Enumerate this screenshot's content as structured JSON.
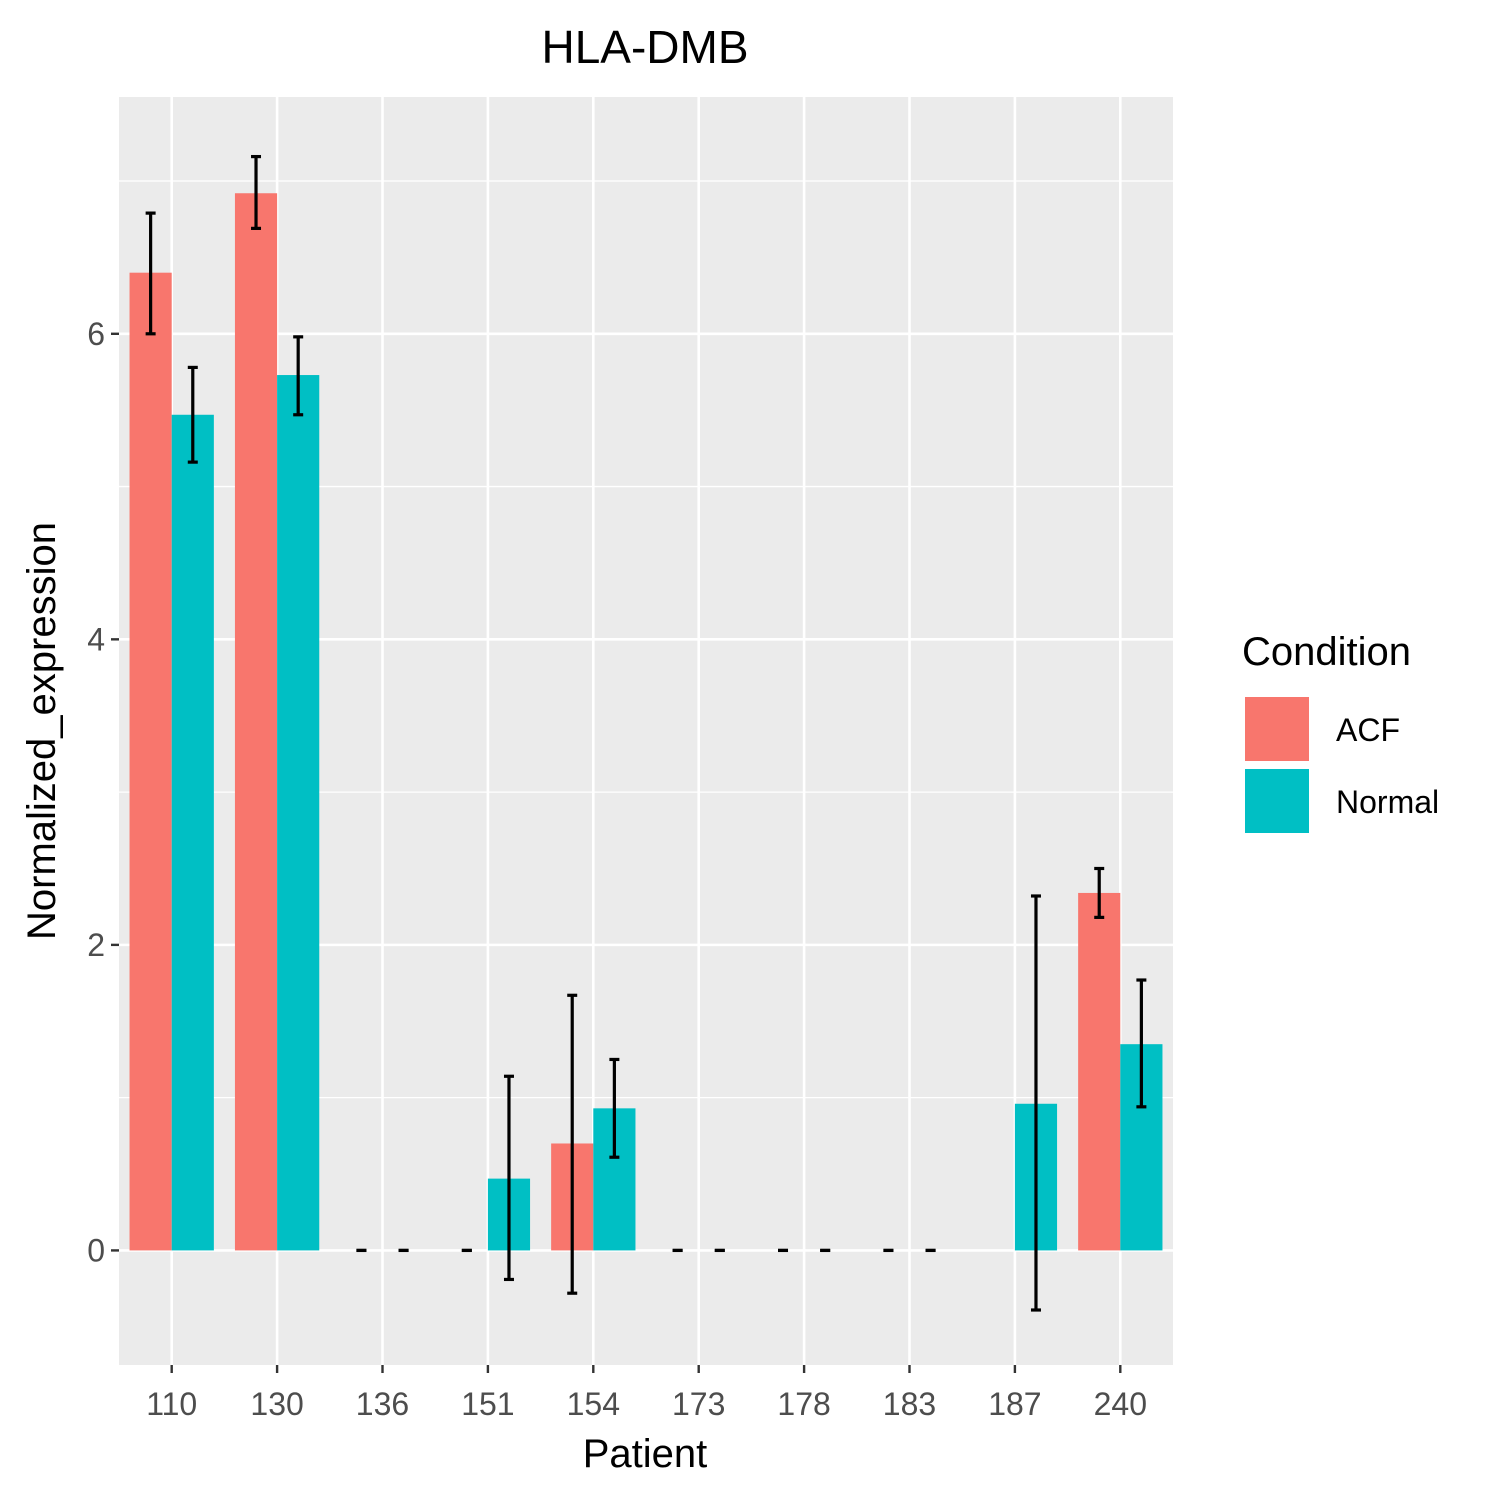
{
  "chart_data": {
    "type": "bar",
    "title": "HLA-DMB",
    "xlabel": "Patient",
    "ylabel": "Normalized_expression",
    "categories": [
      "110",
      "130",
      "136",
      "151",
      "154",
      "173",
      "178",
      "183",
      "187",
      "240"
    ],
    "ylim": [
      -0.75,
      7.55
    ],
    "yticks": [
      0,
      2,
      4,
      6
    ],
    "grid": true,
    "legend": {
      "title": "Condition",
      "position": "right"
    },
    "series": [
      {
        "name": "ACF",
        "color": "#F8766D",
        "values": [
          6.4,
          6.92,
          0,
          0,
          0.7,
          0,
          0,
          0,
          null,
          2.34
        ],
        "error_low": [
          6.0,
          6.69,
          0,
          0,
          -0.28,
          0,
          0,
          0,
          null,
          2.18
        ],
        "error_high": [
          6.79,
          7.16,
          0,
          0,
          1.67,
          0,
          0,
          0,
          null,
          2.5
        ]
      },
      {
        "name": "Normal",
        "color": "#00BFC4",
        "values": [
          5.47,
          5.73,
          0,
          0.47,
          0.93,
          0,
          0,
          0,
          0.96,
          1.35
        ],
        "error_low": [
          5.16,
          5.47,
          0,
          -0.19,
          0.61,
          0,
          0,
          0,
          -0.39,
          0.94
        ],
        "error_high": [
          5.78,
          5.98,
          0,
          1.14,
          1.25,
          0,
          0,
          0,
          2.32,
          1.77
        ]
      }
    ]
  }
}
